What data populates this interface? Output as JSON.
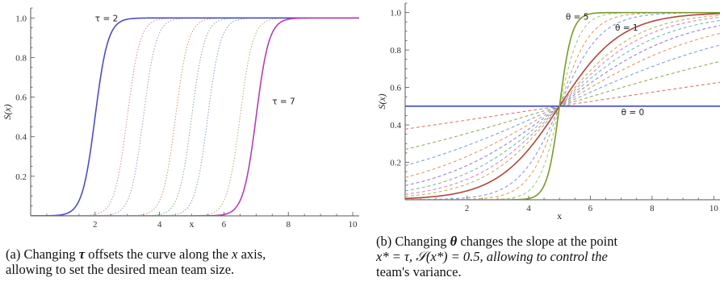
{
  "chart_data": [
    {
      "type": "line",
      "panel": "a",
      "xlabel": "x",
      "ylabel": "S(x)",
      "xlim": [
        0,
        10.2
      ],
      "ylim": [
        0,
        1.05
      ],
      "xticks": [
        2,
        4,
        6,
        8,
        10
      ],
      "yticks": [
        0.2,
        0.4,
        0.6,
        0.8,
        1.0
      ],
      "grid": false,
      "model": "logistic: S(x) = 1 / (1 + exp(-theta * (x - tau)))",
      "theta": 5,
      "series": [
        {
          "tau": 2,
          "style": "solid",
          "color": "#4a4ec9"
        },
        {
          "tau": 3,
          "style": "dotted",
          "color": "#d58fb8"
        },
        {
          "tau": 3.5,
          "style": "dotted",
          "color": "#b59ecf"
        },
        {
          "tau": 4.5,
          "style": "dotted",
          "color": "#c9a27a"
        },
        {
          "tau": 5,
          "style": "dotted",
          "color": "#8fb98f"
        },
        {
          "tau": 5.5,
          "style": "dotted",
          "color": "#8aa9d0"
        },
        {
          "tau": 6.5,
          "style": "dotted",
          "color": "#c8b083"
        },
        {
          "tau": 7,
          "style": "solid",
          "color": "#b33fb3"
        }
      ],
      "annotations": [
        {
          "text": "τ = 2",
          "at": [
            2.0,
            1.0
          ]
        },
        {
          "text": "τ = 7",
          "at": [
            7.5,
            0.58
          ]
        }
      ]
    },
    {
      "type": "line",
      "panel": "b",
      "xlabel": "x",
      "ylabel": "S(x)",
      "xlim": [
        0,
        10.2
      ],
      "ylim": [
        0,
        1.05
      ],
      "xticks": [
        2,
        4,
        6,
        8,
        10
      ],
      "yticks": [
        0.2,
        0.4,
        0.6,
        0.8,
        1.0
      ],
      "grid": false,
      "model": "logistic: S(x) = 1 / (1 + exp(-theta * (x - tau)))",
      "tau": 5,
      "series": [
        {
          "theta": 0,
          "style": "solid",
          "color": "#3f49c9"
        },
        {
          "theta": 0.1,
          "style": "dashed",
          "color": "#d97a7a"
        },
        {
          "theta": 0.2,
          "style": "dashed",
          "color": "#8fae5a"
        },
        {
          "theta": 0.3,
          "style": "dashed",
          "color": "#7fa3d8"
        },
        {
          "theta": 0.4,
          "style": "dashed",
          "color": "#d9a06a"
        },
        {
          "theta": 0.5,
          "style": "dashed",
          "color": "#9a7fcf"
        },
        {
          "theta": 0.6,
          "style": "dashed",
          "color": "#6fc0a8"
        },
        {
          "theta": 0.7,
          "style": "dashed",
          "color": "#d887c0"
        },
        {
          "theta": 0.8,
          "style": "dashed",
          "color": "#b8b85a"
        },
        {
          "theta": 1,
          "style": "solid",
          "color": "#b0463a"
        },
        {
          "theta": 1.5,
          "style": "dashed",
          "color": "#7f9fd8"
        },
        {
          "theta": 2,
          "style": "dashed",
          "color": "#e0a060"
        },
        {
          "theta": 3,
          "style": "dashed",
          "color": "#9fcf7f"
        },
        {
          "theta": 5,
          "style": "solid",
          "color": "#7a9a2a"
        }
      ],
      "annotations": [
        {
          "text": "θ = 5",
          "at": [
            5.2,
            0.98
          ]
        },
        {
          "text": "θ = 1",
          "at": [
            6.8,
            0.92
          ]
        },
        {
          "text": "θ = 0",
          "at": [
            7.0,
            0.47
          ]
        }
      ]
    }
  ],
  "captions": {
    "a": {
      "pre": "(a) Changing ",
      "sym": "τ",
      "mid": " offsets the curve along the ",
      "var": "x",
      "post": " axis,",
      "line2": "allowing to set the desired mean team size."
    },
    "b": {
      "line1_pre": "(b) Changing ",
      "line1_sym": "θ",
      "line1_post": " changes the slope at the point",
      "line2": "x* = τ,  𝒮(x*) = 0.5, allowing to control the",
      "line3": "team's variance."
    }
  }
}
